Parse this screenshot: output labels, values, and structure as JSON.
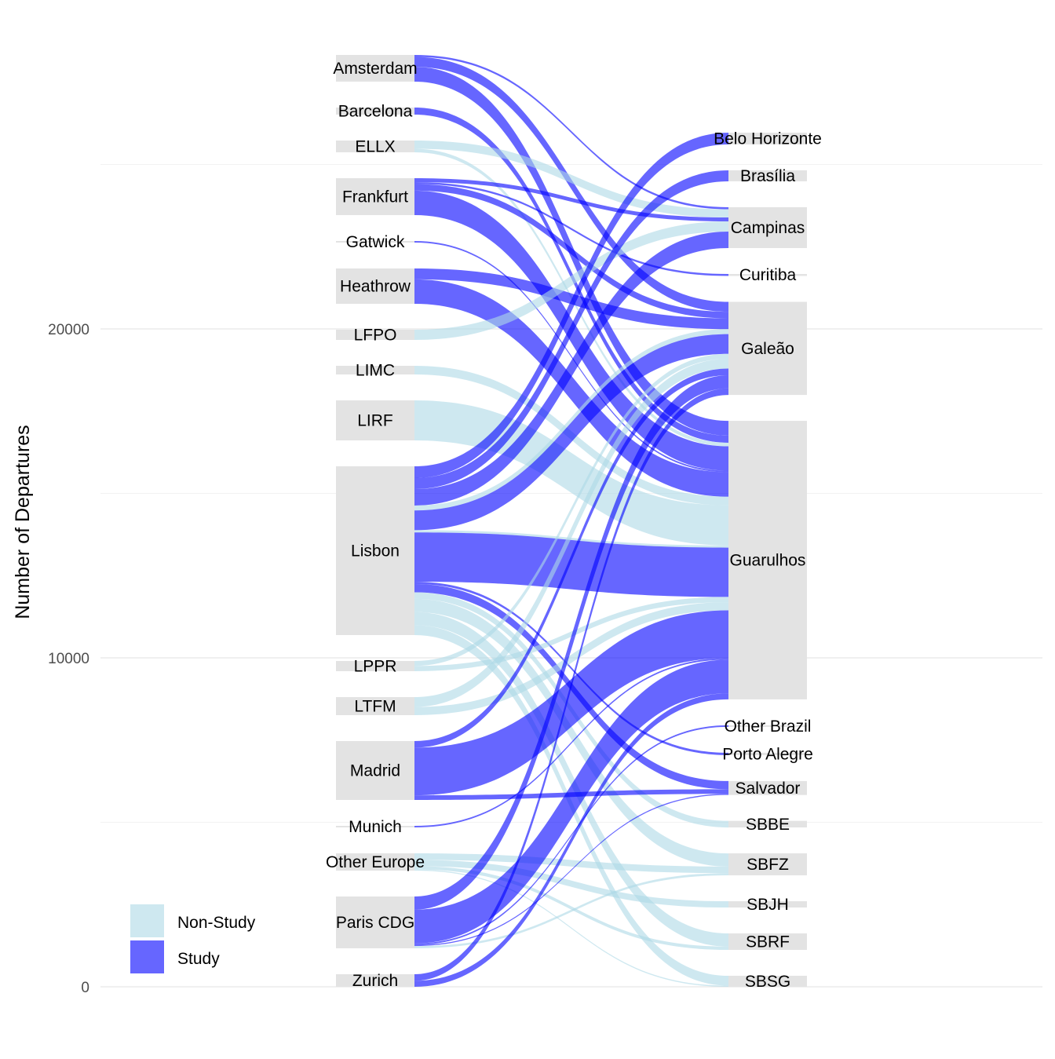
{
  "chart_data": {
    "type": "alluvial",
    "title": "",
    "xlabel": "",
    "ylabel": "Number of Departures",
    "ylim": [
      0,
      28300
    ],
    "y_ticks": [
      0,
      10000,
      20000
    ],
    "y_tick_labels": [
      "0",
      "10000",
      "20000"
    ],
    "grid": true,
    "legend": {
      "placement": "bottom-left",
      "entries": [
        {
          "name": "Non-Study",
          "color": "#ADD8E6"
        },
        {
          "name": "Study",
          "color": "#0000FF"
        }
      ]
    },
    "fill_alpha": 0.6,
    "stratum_color": "#E3E3E3",
    "left_strata": [
      "Amsterdam",
      "Barcelona",
      "ELLX",
      "Frankfurt",
      "Gatwick",
      "Heathrow",
      "LFPO",
      "LIMC",
      "LIRF",
      "Lisbon",
      "LPPR",
      "LTFM",
      "Madrid",
      "Munich",
      "Other Europe",
      "Paris CDG",
      "Zurich"
    ],
    "right_strata": [
      "Belo Horizonte",
      "Brasília",
      "Campinas",
      "Curitiba",
      "Galeão",
      "Guarulhos",
      "Other Brazil",
      "Porto Alegre",
      "Salvador",
      "SBBE",
      "SBFZ",
      "SBJH",
      "SBRF",
      "SBSG"
    ],
    "flows": [
      [
        "Amsterdam",
        "Campinas",
        "Study",
        61
      ],
      [
        "Amsterdam",
        "Galeão",
        "Study",
        300
      ],
      [
        "Amsterdam",
        "Guarulhos",
        "Study",
        450
      ],
      [
        "Barcelona",
        "Guarulhos",
        "Study",
        215
      ],
      [
        "ELLX",
        "Campinas",
        "Non-Study",
        250
      ],
      [
        "ELLX",
        "Guarulhos",
        "Non-Study",
        108
      ],
      [
        "Frankfurt",
        "Campinas",
        "Study",
        120
      ],
      [
        "Frankfurt",
        "Curitiba",
        "Study",
        60
      ],
      [
        "Frankfurt",
        "Galeão",
        "Study",
        200
      ],
      [
        "Frankfurt",
        "Guarulhos",
        "Study",
        742
      ],
      [
        "Gatwick",
        "Guarulhos",
        "Study",
        48
      ],
      [
        "Heathrow",
        "Galeão",
        "Study",
        330
      ],
      [
        "Heathrow",
        "Guarulhos",
        "Study",
        744
      ],
      [
        "LFPO",
        "Campinas",
        "Non-Study",
        310
      ],
      [
        "LIMC",
        "Guarulhos",
        "Non-Study",
        263
      ],
      [
        "LIRF",
        "Guarulhos",
        "Non-Study",
        1217
      ],
      [
        "Lisbon",
        "Belo Horizonte",
        "Study",
        358
      ],
      [
        "Lisbon",
        "Brasília",
        "Study",
        334
      ],
      [
        "Lisbon",
        "Campinas",
        "Study",
        500
      ],
      [
        "Lisbon",
        "Galeão",
        "Non-Study",
        150
      ],
      [
        "Lisbon",
        "Galeão",
        "Study",
        600
      ],
      [
        "Lisbon",
        "Guarulhos",
        "Non-Study",
        67
      ],
      [
        "Lisbon",
        "Guarulhos",
        "Study",
        1500
      ],
      [
        "Lisbon",
        "Porto Alegre",
        "Study",
        72
      ],
      [
        "Lisbon",
        "Salvador",
        "Study",
        250
      ],
      [
        "Lisbon",
        "SBBE",
        "Non-Study",
        200
      ],
      [
        "Lisbon",
        "SBFZ",
        "Non-Study",
        400
      ],
      [
        "Lisbon",
        "SBRF",
        "Non-Study",
        400
      ],
      [
        "Lisbon",
        "SBSG",
        "Non-Study",
        300
      ],
      [
        "LPPR",
        "Galeão",
        "Non-Study",
        150
      ],
      [
        "LPPR",
        "Guarulhos",
        "Non-Study",
        160
      ],
      [
        "LTFM",
        "Galeão",
        "Non-Study",
        300
      ],
      [
        "LTFM",
        "Guarulhos",
        "Non-Study",
        249
      ],
      [
        "Madrid",
        "Galeão",
        "Study",
        200
      ],
      [
        "Madrid",
        "Guarulhos",
        "Study",
        1450
      ],
      [
        "Madrid",
        "Salvador",
        "Study",
        140
      ],
      [
        "Munich",
        "Guarulhos",
        "Study",
        48
      ],
      [
        "Other Europe",
        "SBFZ",
        "Non-Study",
        200
      ],
      [
        "Other Europe",
        "SBJH",
        "Non-Study",
        191
      ],
      [
        "Other Europe",
        "SBRF",
        "Non-Study",
        100
      ],
      [
        "Other Europe",
        "SBSG",
        "Non-Study",
        34
      ],
      [
        "Paris CDG",
        "Galeão",
        "Study",
        400
      ],
      [
        "Paris CDG",
        "Guarulhos",
        "Study",
        1025
      ],
      [
        "Paris CDG",
        "Other Brazil",
        "Study",
        48
      ],
      [
        "Paris CDG",
        "Salvador",
        "Study",
        34
      ],
      [
        "Paris CDG",
        "SBFZ",
        "Non-Study",
        68
      ],
      [
        "Zurich",
        "Galeão",
        "Study",
        200
      ],
      [
        "Zurich",
        "Guarulhos",
        "Study",
        182
      ]
    ]
  }
}
